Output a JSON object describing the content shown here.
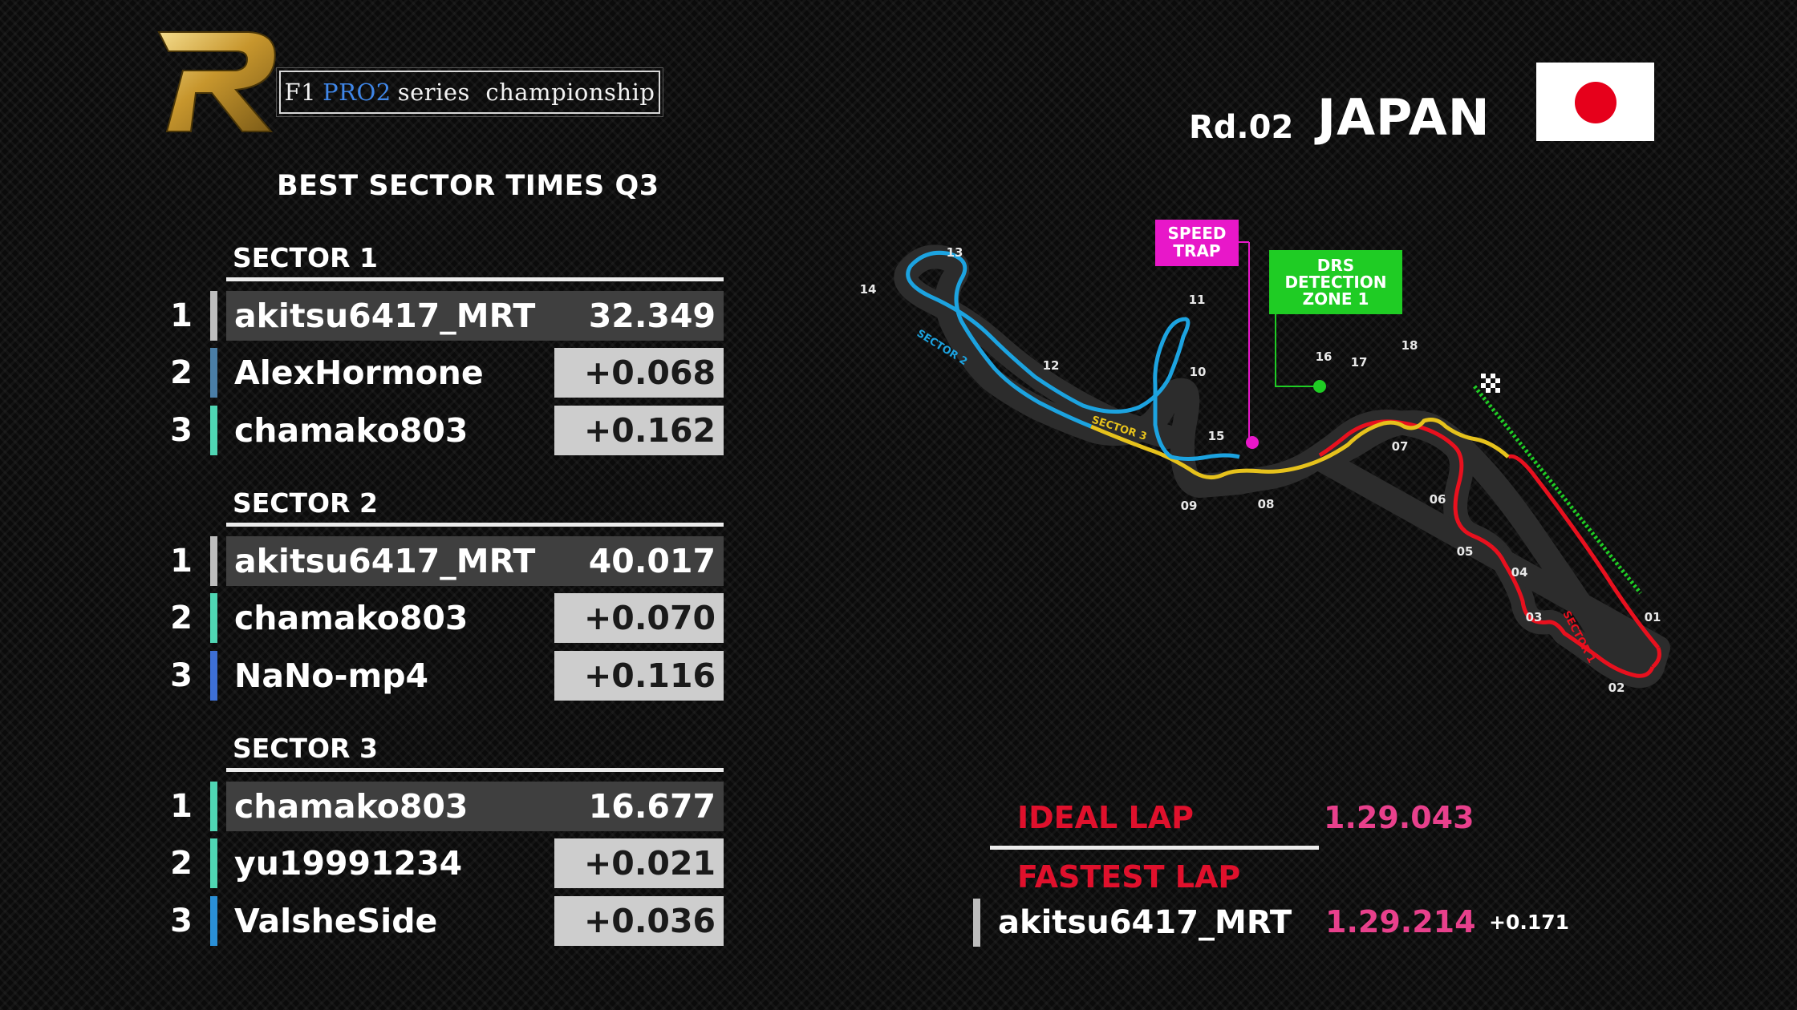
{
  "brand": {
    "series_prefix": "F1",
    "series_pro2": "PRO2",
    "series_suffix": "series  championship"
  },
  "header": {
    "round": "Rd.02",
    "country": "JAPAN",
    "flag_icon": "japan-flag-icon"
  },
  "title": "BEST SECTOR TIMES Q3",
  "sectors": [
    {
      "label": "SECTOR 1",
      "rows": [
        {
          "pos": "1",
          "name": "akitsu6417_MRT",
          "time": "32.349",
          "color": "#bdbdbd"
        },
        {
          "pos": "2",
          "name": "AlexHormone",
          "time": "+0.068",
          "color": "#4a7ea6"
        },
        {
          "pos": "3",
          "name": "chamako803",
          "time": "+0.162",
          "color": "#4fd6b4"
        }
      ]
    },
    {
      "label": "SECTOR 2",
      "rows": [
        {
          "pos": "1",
          "name": "akitsu6417_MRT",
          "time": "40.017",
          "color": "#bdbdbd"
        },
        {
          "pos": "2",
          "name": "chamako803",
          "time": "+0.070",
          "color": "#4fd6b4"
        },
        {
          "pos": "3",
          "name": "NaNo-mp4",
          "time": "+0.116",
          "color": "#3d6fd6"
        }
      ]
    },
    {
      "label": "SECTOR 3",
      "rows": [
        {
          "pos": "1",
          "name": "chamako803",
          "time": "16.677",
          "color": "#4fd6b4"
        },
        {
          "pos": "2",
          "name": "yu19991234",
          "time": "+0.021",
          "color": "#4fd6b4"
        },
        {
          "pos": "3",
          "name": "ValsheSide",
          "time": "+0.036",
          "color": "#2a8fd6"
        }
      ]
    }
  ],
  "track": {
    "speed_trap_line1": "SPEED",
    "speed_trap_line2": "TRAP",
    "drs_line1": "DRS",
    "drs_line2": "DETECTION",
    "drs_line3": "ZONE 1",
    "sector1_label": "SECTOR 1",
    "sector2_label": "SECTOR 2",
    "sector3_label": "SECTOR 3",
    "turns": [
      "01",
      "02",
      "03",
      "04",
      "05",
      "06",
      "07",
      "08",
      "09",
      "10",
      "11",
      "12",
      "13",
      "14",
      "15",
      "16",
      "17",
      "18"
    ],
    "colors": {
      "sector1": "#e8101e",
      "sector2": "#1ca3e0",
      "sector3": "#e6c21c",
      "speed_trap": "#e817c9",
      "drs": "#1fcc24"
    }
  },
  "laps": {
    "ideal_label": "IDEAL LAP",
    "ideal_time": "1.29.043",
    "fastest_label": "FASTEST LAP",
    "fastest_name": "akitsu6417_MRT",
    "fastest_time": "1.29.214",
    "fastest_gap": "+0.171"
  }
}
